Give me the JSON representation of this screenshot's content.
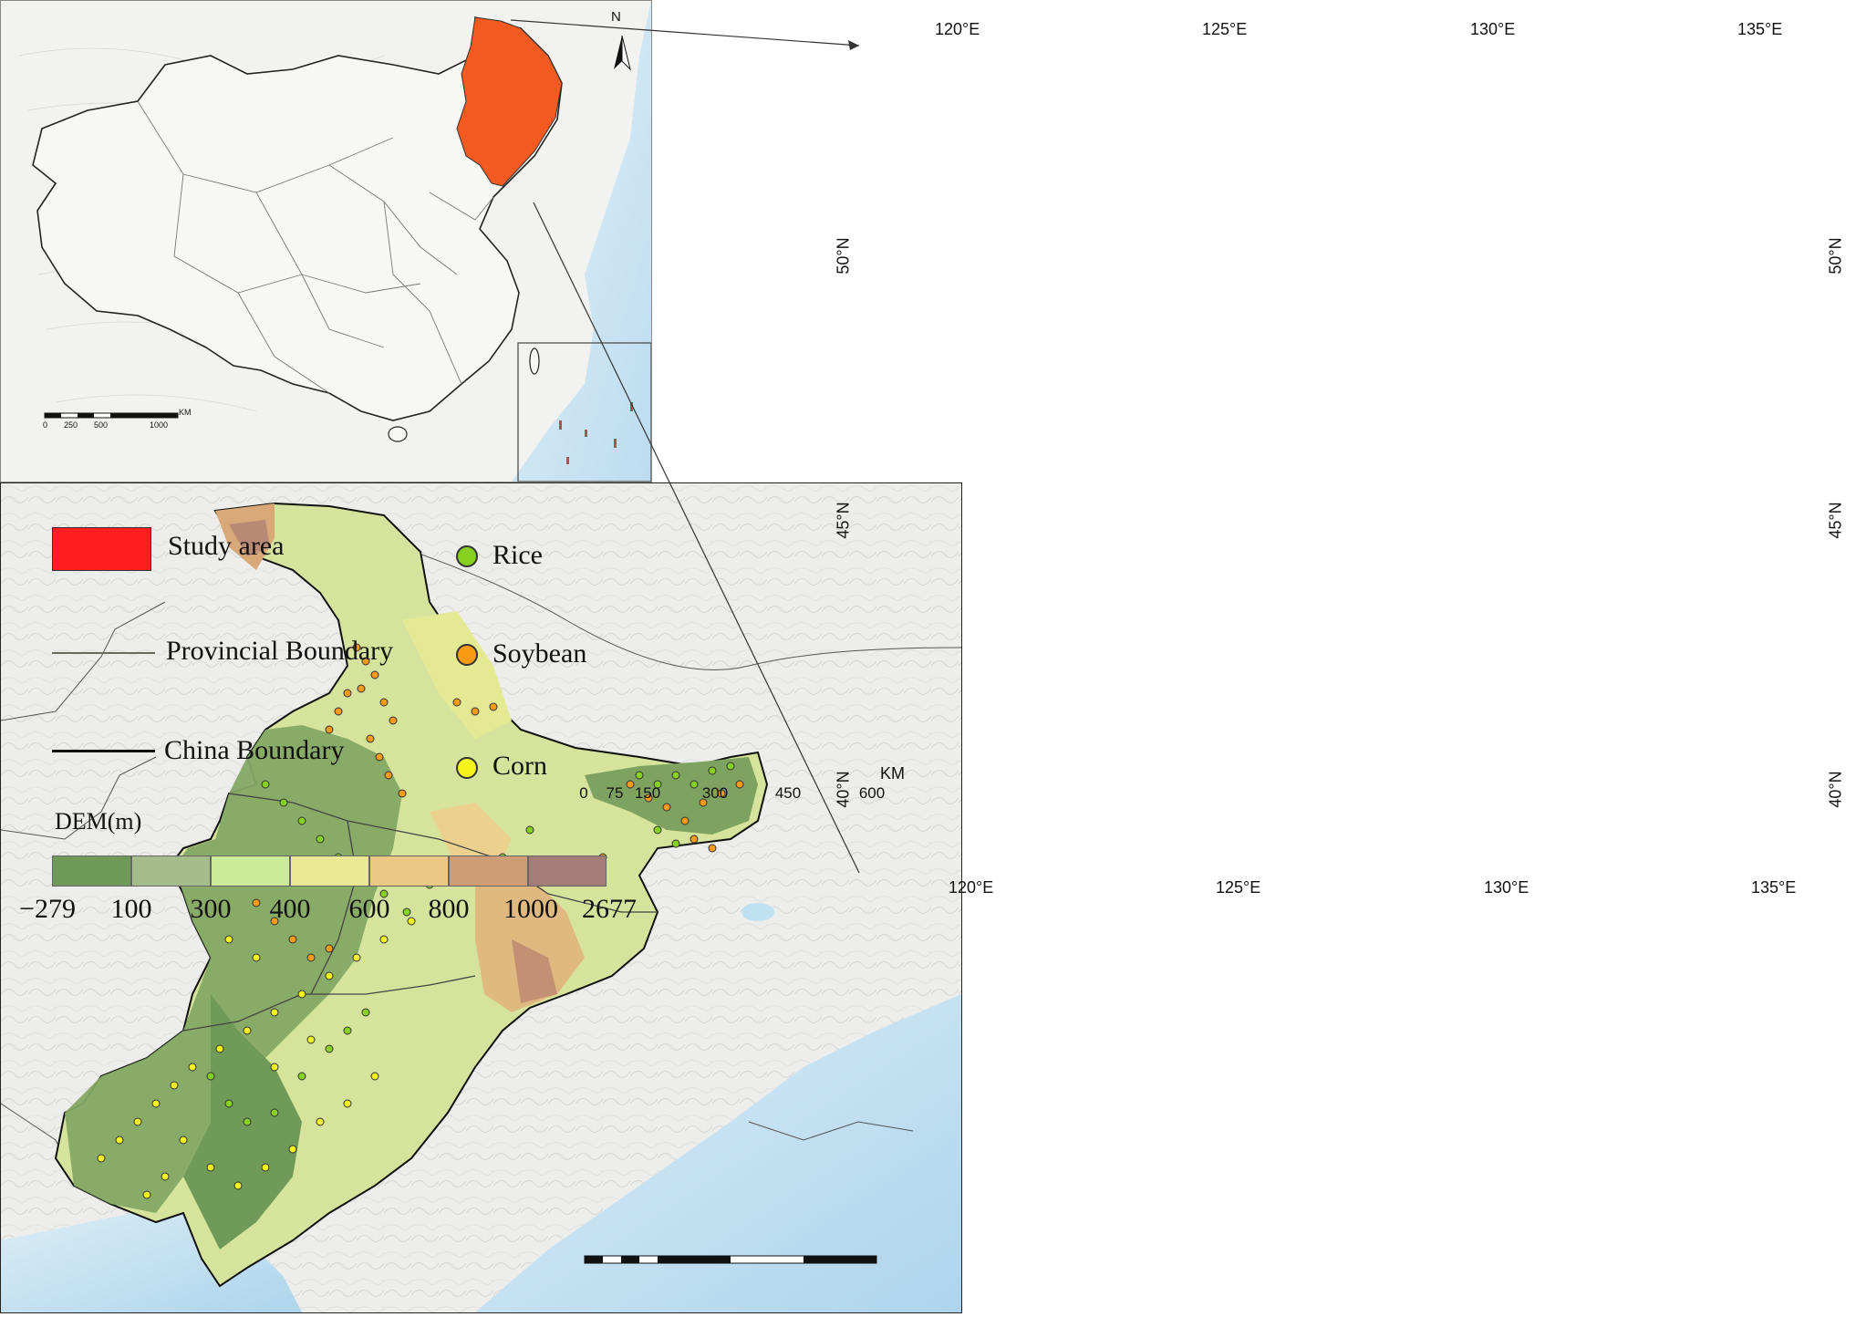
{
  "inset": {
    "north_label": "N",
    "scale_labels": [
      "0",
      "250",
      "500",
      "1000"
    ],
    "scale_unit": "KM"
  },
  "legend": {
    "study_area": "Study area",
    "provincial_boundary": "Provincial Boundary",
    "china_boundary": "China Boundary",
    "rice": "Rice",
    "soybean": "Soybean",
    "corn": "Corn",
    "dem_title": "DEM(m)",
    "dem_values": [
      "−279",
      "100",
      "300",
      "400",
      "600",
      "800",
      "1000",
      "2677"
    ],
    "dem_colors": [
      "#6f9a57",
      "#a4bd8a",
      "#cbea9a",
      "#ece994",
      "#ecc982",
      "#cf9d75",
      "#a47c78"
    ]
  },
  "colors": {
    "study_area": "#ff1f1f",
    "inset_study_area": "#f25a1f",
    "rice": "#86d01f",
    "soybean": "#f79a12",
    "corn": "#f4f31a"
  },
  "main_map": {
    "top_ticks": [
      "120°E",
      "125°E",
      "130°E",
      "135°E"
    ],
    "bottom_ticks": [
      "120°E",
      "125°E",
      "130°E",
      "135°E"
    ],
    "left_ticks": [
      "50°N",
      "45°N",
      "40°N"
    ],
    "right_ticks": [
      "50°N",
      "45°N",
      "40°N"
    ],
    "scale_labels": [
      "0",
      "75",
      "150",
      "300",
      "450",
      "600"
    ],
    "scale_unit": "KM"
  }
}
